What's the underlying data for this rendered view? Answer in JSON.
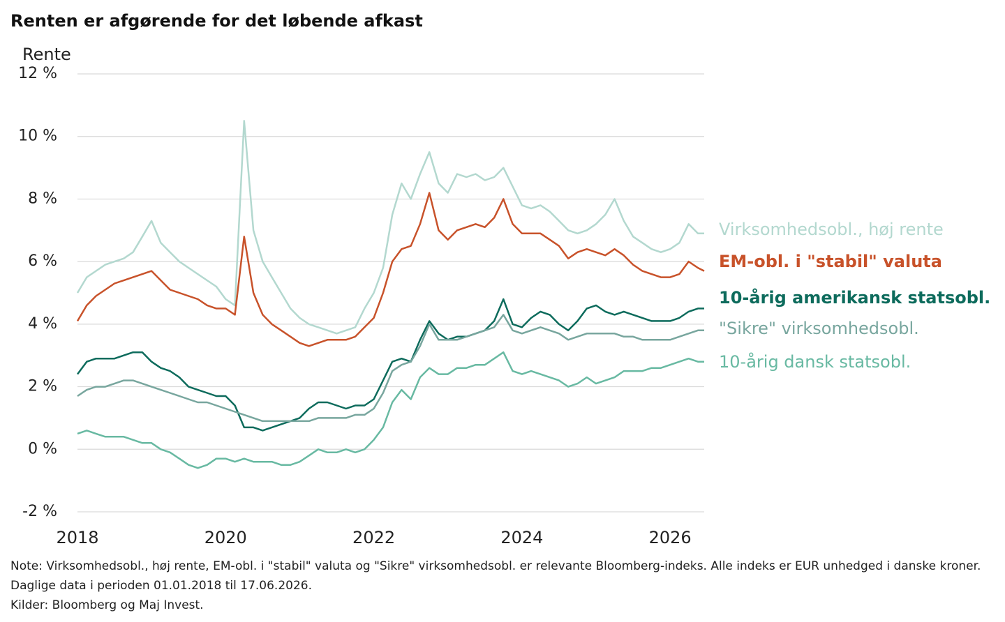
{
  "chart_data": {
    "type": "line",
    "title": "Renten er afgørende for det løbende afkast",
    "y_label": "Rente",
    "note": "Note: Virksomhedsobl., høj rente, EM-obl. i \"stabil\" valuta og \"Sikre\" virksomhedsobl. er relevante Bloomberg-indeks. Alle indeks er EUR unhedged i danske kroner. Daglige data i perioden 01.01.2018 til 17.06.2026.",
    "source": "Kilder: Bloomberg og Maj Invest.",
    "xlim": [
      2018,
      2026.46
    ],
    "xticks": [
      2018,
      2020,
      2022,
      2024,
      2026
    ],
    "ylim": [
      -2,
      12
    ],
    "yticks": [
      {
        "value": -2,
        "label": "-2 %"
      },
      {
        "value": 0,
        "label": "0 %"
      },
      {
        "value": 2,
        "label": "2 %"
      },
      {
        "value": 4,
        "label": "4 %"
      },
      {
        "value": 6,
        "label": "6 %"
      },
      {
        "value": 8,
        "label": "8 %"
      },
      {
        "value": 10,
        "label": "10 %"
      },
      {
        "value": 12,
        "label": "12 %"
      }
    ],
    "grid": true,
    "x": [
      2018,
      2018.125,
      2018.25,
      2018.375,
      2018.5,
      2018.625,
      2018.75,
      2018.875,
      2019,
      2019.125,
      2019.25,
      2019.375,
      2019.5,
      2019.625,
      2019.75,
      2019.875,
      2020,
      2020.125,
      2020.25,
      2020.375,
      2020.5,
      2020.625,
      2020.75,
      2020.875,
      2021,
      2021.125,
      2021.25,
      2021.375,
      2021.5,
      2021.625,
      2021.75,
      2021.875,
      2022,
      2022.125,
      2022.25,
      2022.375,
      2022.5,
      2022.625,
      2022.75,
      2022.875,
      2023,
      2023.125,
      2023.25,
      2023.375,
      2023.5,
      2023.625,
      2023.75,
      2023.875,
      2024,
      2024.125,
      2024.25,
      2024.375,
      2024.5,
      2024.625,
      2024.75,
      2024.875,
      2025,
      2025.125,
      2025.25,
      2025.375,
      2025.5,
      2025.625,
      2025.75,
      2025.875,
      2026,
      2026.125,
      2026.25,
      2026.375,
      2026.46
    ],
    "series": [
      {
        "name": "Virksomhedsobl., høj rente",
        "color": "#b3d8cf",
        "values": [
          5.0,
          5.5,
          5.7,
          5.9,
          6.0,
          6.1,
          6.3,
          6.8,
          7.3,
          6.6,
          6.3,
          6.0,
          5.8,
          5.6,
          5.4,
          5.2,
          4.8,
          4.6,
          10.5,
          7.0,
          6.0,
          5.5,
          5.0,
          4.5,
          4.2,
          4.0,
          3.9,
          3.8,
          3.7,
          3.8,
          3.9,
          4.5,
          5.0,
          5.8,
          7.5,
          8.5,
          8.0,
          8.8,
          9.5,
          8.5,
          8.2,
          8.8,
          8.7,
          8.8,
          8.6,
          8.7,
          9.0,
          8.4,
          7.8,
          7.7,
          7.8,
          7.6,
          7.3,
          7.0,
          6.9,
          7.0,
          7.2,
          7.5,
          8.0,
          7.3,
          6.8,
          6.6,
          6.4,
          6.3,
          6.4,
          6.6,
          7.2,
          6.9,
          6.9
        ]
      },
      {
        "name": "EM-obl. i \"stabil\" valuta",
        "color": "#c8522a",
        "values": [
          4.1,
          4.6,
          4.9,
          5.1,
          5.3,
          5.4,
          5.5,
          5.6,
          5.7,
          5.4,
          5.1,
          5.0,
          4.9,
          4.8,
          4.6,
          4.5,
          4.5,
          4.3,
          6.8,
          5.0,
          4.3,
          4.0,
          3.8,
          3.6,
          3.4,
          3.3,
          3.4,
          3.5,
          3.5,
          3.5,
          3.6,
          3.9,
          4.2,
          5.0,
          6.0,
          6.4,
          6.5,
          7.2,
          8.2,
          7.0,
          6.7,
          7.0,
          7.1,
          7.2,
          7.1,
          7.4,
          8.0,
          7.2,
          6.9,
          6.9,
          6.9,
          6.7,
          6.5,
          6.1,
          6.3,
          6.4,
          6.3,
          6.2,
          6.4,
          6.2,
          5.9,
          5.7,
          5.6,
          5.5,
          5.5,
          5.6,
          6.0,
          5.8,
          5.7
        ]
      },
      {
        "name": "10-årig amerikansk statsobl.",
        "color": "#0d6b5c",
        "values": [
          2.4,
          2.8,
          2.9,
          2.9,
          2.9,
          3.0,
          3.1,
          3.1,
          2.8,
          2.6,
          2.5,
          2.3,
          2.0,
          1.9,
          1.8,
          1.7,
          1.7,
          1.4,
          0.7,
          0.7,
          0.6,
          0.7,
          0.8,
          0.9,
          1.0,
          1.3,
          1.5,
          1.5,
          1.4,
          1.3,
          1.4,
          1.4,
          1.6,
          2.2,
          2.8,
          2.9,
          2.8,
          3.5,
          4.1,
          3.7,
          3.5,
          3.6,
          3.6,
          3.7,
          3.8,
          4.1,
          4.8,
          4.0,
          3.9,
          4.2,
          4.4,
          4.3,
          4.0,
          3.8,
          4.1,
          4.5,
          4.6,
          4.4,
          4.3,
          4.4,
          4.3,
          4.2,
          4.1,
          4.1,
          4.1,
          4.2,
          4.4,
          4.5,
          4.5
        ]
      },
      {
        "name": "\"Sikre\" virksomhedsobl.",
        "color": "#78a69e",
        "values": [
          1.7,
          1.9,
          2.0,
          2.0,
          2.1,
          2.2,
          2.2,
          2.1,
          2.0,
          1.9,
          1.8,
          1.7,
          1.6,
          1.5,
          1.5,
          1.4,
          1.3,
          1.2,
          1.1,
          1.0,
          0.9,
          0.9,
          0.9,
          0.9,
          0.9,
          0.9,
          1.0,
          1.0,
          1.0,
          1.0,
          1.1,
          1.1,
          1.3,
          1.8,
          2.5,
          2.7,
          2.8,
          3.3,
          4.0,
          3.5,
          3.5,
          3.5,
          3.6,
          3.7,
          3.8,
          3.9,
          4.3,
          3.8,
          3.7,
          3.8,
          3.9,
          3.8,
          3.7,
          3.5,
          3.6,
          3.7,
          3.7,
          3.7,
          3.7,
          3.6,
          3.6,
          3.5,
          3.5,
          3.5,
          3.5,
          3.6,
          3.7,
          3.8,
          3.8
        ]
      },
      {
        "name": "10-årig dansk statsobl.",
        "color": "#68b9a2",
        "values": [
          0.5,
          0.6,
          0.5,
          0.4,
          0.4,
          0.4,
          0.3,
          0.2,
          0.2,
          0.0,
          -0.1,
          -0.3,
          -0.5,
          -0.6,
          -0.5,
          -0.3,
          -0.3,
          -0.4,
          -0.3,
          -0.4,
          -0.4,
          -0.4,
          -0.5,
          -0.5,
          -0.4,
          -0.2,
          0.0,
          -0.1,
          -0.1,
          0.0,
          -0.1,
          0.0,
          0.3,
          0.7,
          1.5,
          1.9,
          1.6,
          2.3,
          2.6,
          2.4,
          2.4,
          2.6,
          2.6,
          2.7,
          2.7,
          2.9,
          3.1,
          2.5,
          2.4,
          2.5,
          2.4,
          2.3,
          2.2,
          2.0,
          2.1,
          2.3,
          2.1,
          2.2,
          2.3,
          2.5,
          2.5,
          2.5,
          2.6,
          2.6,
          2.7,
          2.8,
          2.9,
          2.8,
          2.8
        ]
      }
    ]
  }
}
